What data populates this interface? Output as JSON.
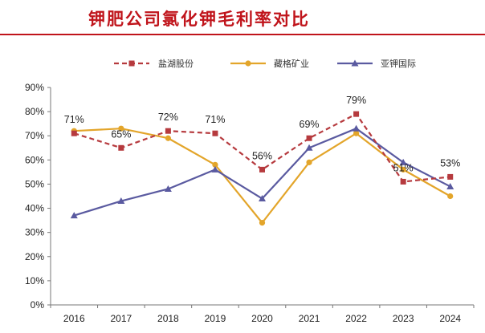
{
  "title": "钾肥公司氯化钾毛利率对比",
  "chart_data": {
    "type": "line",
    "title": "钾肥公司氯化钾毛利率对比",
    "categories": [
      "2016",
      "2017",
      "2018",
      "2019",
      "2020",
      "2021",
      "2022",
      "2023",
      "2024"
    ],
    "y_ticks": [
      "0%",
      "10%",
      "20%",
      "30%",
      "40%",
      "50%",
      "60%",
      "70%",
      "80%",
      "90%"
    ],
    "ylim": [
      0,
      90
    ],
    "legend_position": "top-center",
    "grid": false,
    "series": [
      {
        "name": "盐湖股份",
        "marker": "square",
        "dashed": true,
        "color": "#b63a3e",
        "values": [
          71,
          65,
          72,
          71,
          56,
          69,
          79,
          51,
          53
        ],
        "labels": [
          "71%",
          "65%",
          "72%",
          "71%",
          "56%",
          "69%",
          "79%",
          "51%",
          "53%"
        ]
      },
      {
        "name": "藏格矿业",
        "marker": "circle",
        "dashed": false,
        "color": "#e3a52a",
        "values": [
          72,
          73,
          69,
          58,
          34,
          59,
          71,
          56,
          45
        ]
      },
      {
        "name": "亚钾国际",
        "marker": "triangle",
        "dashed": false,
        "color": "#5a5aa0",
        "values": [
          37,
          43,
          48,
          56,
          44,
          65,
          73,
          59,
          49
        ]
      }
    ]
  }
}
